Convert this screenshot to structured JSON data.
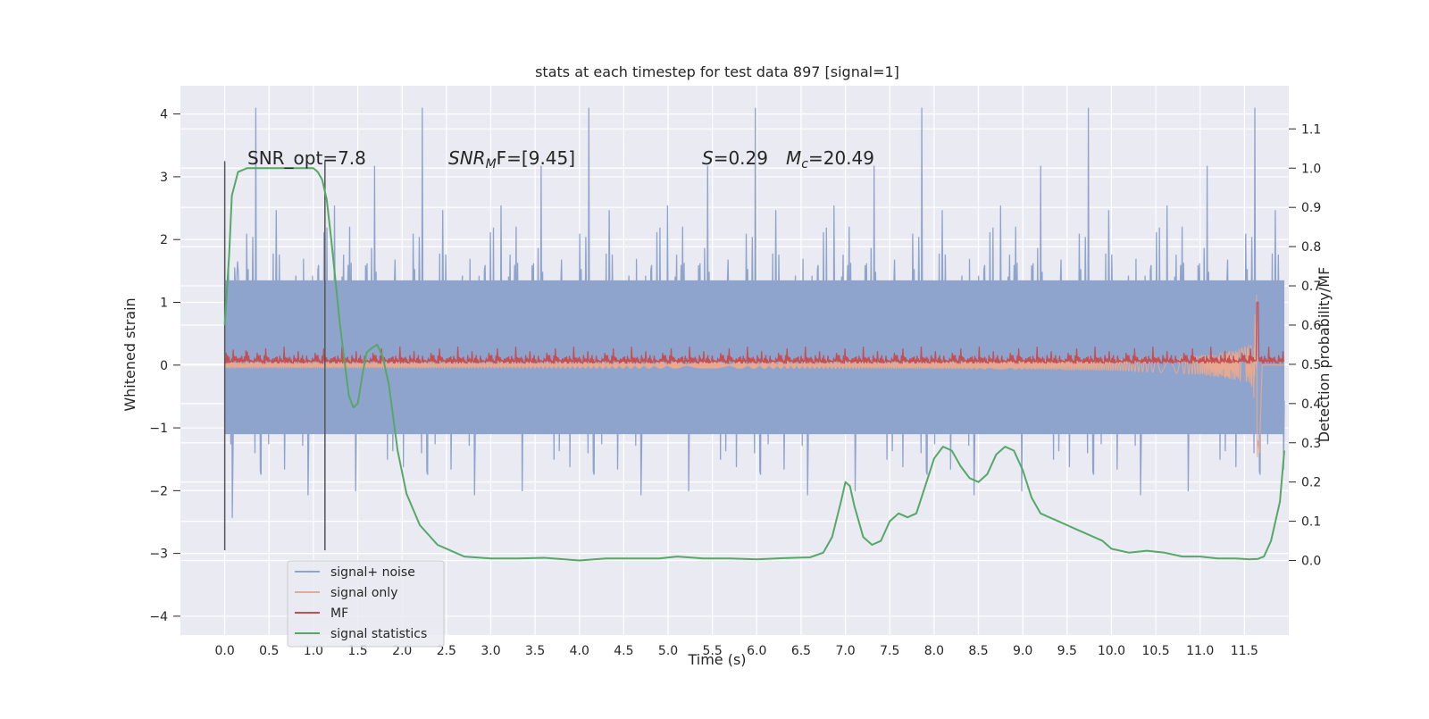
{
  "chart_data": {
    "type": "line",
    "title": "stats at each timestep for test data 897 [signal=1]",
    "xlabel": "Time (s)",
    "ylabel": "Whitened strain",
    "y2label": "Detection probability/MF",
    "xlim": [
      -0.5,
      12.0
    ],
    "ylim": [
      -4.3,
      4.45
    ],
    "y2lim": [
      -0.19,
      1.21
    ],
    "x_ticks": [
      "0.0",
      "0.5",
      "1.0",
      "1.5",
      "2.0",
      "2.5",
      "3.0",
      "3.5",
      "4.0",
      "4.5",
      "5.0",
      "5.5",
      "6.0",
      "6.5",
      "7.0",
      "7.5",
      "8.0",
      "8.5",
      "9.0",
      "9.5",
      "10.0",
      "10.5",
      "11.0",
      "11.5"
    ],
    "y_ticks": [
      "4",
      "3",
      "2",
      "1",
      "0",
      "−1",
      "−2",
      "−3",
      "−4"
    ],
    "y2_ticks": [
      "1.1",
      "1.0",
      "0.9",
      "0.8",
      "0.7",
      "0.6",
      "0.5",
      "0.4",
      "0.3",
      "0.2",
      "0.1",
      "0.0"
    ],
    "grid": true,
    "legend_position": "lower-left",
    "annotations": {
      "snr_opt": "SNR_opt=7.8",
      "snr_mf_prefix": "SNR",
      "snr_mf_sub": "M",
      "snr_mf_rest": "F=[9.45]",
      "s_italic": "S",
      "s_rest": "=0.29",
      "mc_italic": "M",
      "mc_sub": "c",
      "mc_rest": "=20.49"
    },
    "window_markers_x": [
      0.0,
      1.13
    ],
    "series": [
      {
        "name": "signal+ noise",
        "color": "#8fa4cc",
        "axis": "left",
        "description_values": {
          "band_min": -2.9,
          "band_max": 3.0,
          "dense_band": [
            -1.1,
            1.35
          ]
        }
      },
      {
        "name": "signal only",
        "color": "#e7a990",
        "axis": "left",
        "values": {
          "chirp_peak_time": 11.65,
          "chirp_peak_amp": 1.5
        }
      },
      {
        "name": "MF",
        "color": "#c44e52",
        "axis": "left",
        "values": {
          "baseline": 0.1,
          "peak_time": 11.65,
          "peak": 1.0
        }
      },
      {
        "name": "signal statistics",
        "color": "#55a868",
        "axis": "right",
        "x": [
          0.0,
          0.05,
          0.08,
          0.15,
          0.25,
          0.4,
          0.6,
          0.8,
          0.9,
          1.0,
          1.05,
          1.1,
          1.15,
          1.2,
          1.3,
          1.4,
          1.45,
          1.5,
          1.55,
          1.6,
          1.65,
          1.72,
          1.78,
          1.85,
          1.95,
          2.05,
          2.2,
          2.4,
          2.7,
          3.0,
          3.3,
          3.6,
          4.0,
          4.3,
          4.6,
          4.9,
          5.1,
          5.4,
          5.7,
          6.0,
          6.3,
          6.6,
          6.75,
          6.85,
          6.95,
          7.0,
          7.05,
          7.1,
          7.2,
          7.3,
          7.4,
          7.5,
          7.6,
          7.7,
          7.8,
          7.9,
          8.0,
          8.1,
          8.2,
          8.3,
          8.4,
          8.5,
          8.6,
          8.7,
          8.8,
          8.9,
          9.0,
          9.1,
          9.2,
          9.3,
          9.4,
          9.5,
          9.6,
          9.7,
          9.8,
          9.9,
          10.0,
          10.2,
          10.4,
          10.6,
          10.8,
          11.0,
          11.2,
          11.4,
          11.55,
          11.65,
          11.72,
          11.8,
          11.9,
          11.95
        ],
        "values": [
          0.6,
          0.78,
          0.93,
          0.99,
          1.0,
          1.0,
          1.0,
          1.0,
          1.0,
          1.0,
          0.99,
          0.97,
          0.92,
          0.82,
          0.6,
          0.42,
          0.39,
          0.4,
          0.47,
          0.53,
          0.54,
          0.55,
          0.52,
          0.45,
          0.28,
          0.17,
          0.09,
          0.04,
          0.01,
          0.005,
          0.005,
          0.007,
          0.0,
          0.005,
          0.005,
          0.005,
          0.01,
          0.005,
          0.005,
          0.003,
          0.006,
          0.008,
          0.02,
          0.06,
          0.15,
          0.2,
          0.19,
          0.14,
          0.06,
          0.04,
          0.05,
          0.1,
          0.12,
          0.11,
          0.12,
          0.19,
          0.26,
          0.29,
          0.28,
          0.24,
          0.21,
          0.2,
          0.22,
          0.27,
          0.29,
          0.28,
          0.23,
          0.16,
          0.12,
          0.11,
          0.1,
          0.09,
          0.08,
          0.07,
          0.06,
          0.05,
          0.03,
          0.02,
          0.025,
          0.02,
          0.01,
          0.01,
          0.005,
          0.005,
          0.003,
          0.004,
          0.01,
          0.05,
          0.15,
          0.28
        ]
      }
    ]
  }
}
